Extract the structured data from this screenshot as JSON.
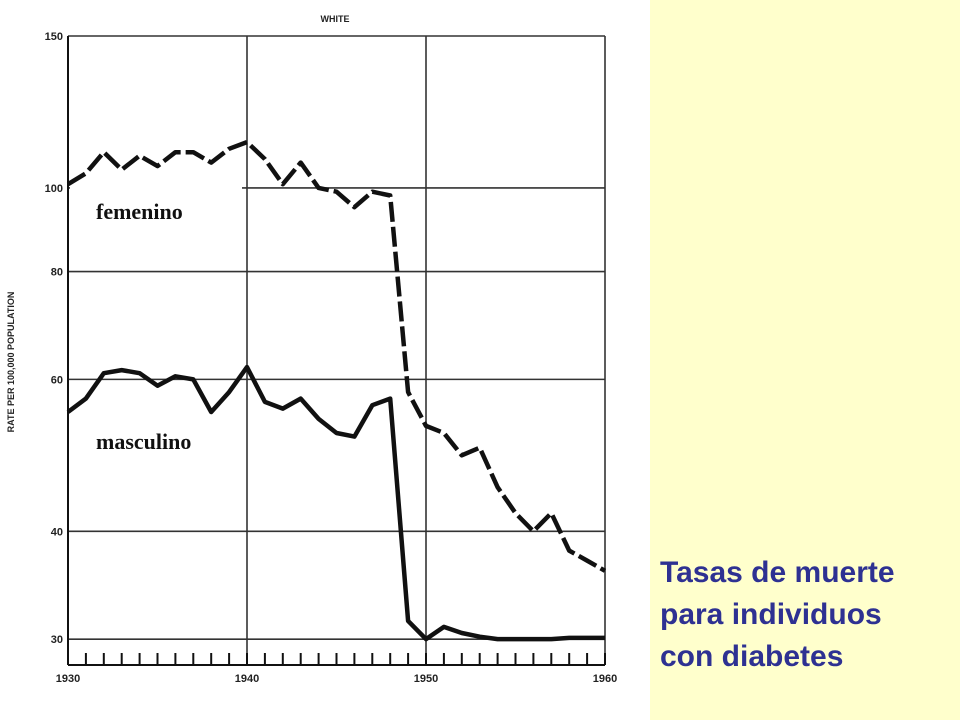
{
  "caption": {
    "lines": [
      "Tasas de muerte",
      "para individuos",
      "con diabetes"
    ]
  },
  "colors": {
    "caption_text": "#2e3192",
    "side_panel": "#ffffcc",
    "chart_ink": "#111111",
    "grid": "#333333"
  },
  "chart_data": {
    "type": "line",
    "title": "WHITE",
    "ylabel": "RATE PER 100,000 POPULATION",
    "xlabel": "",
    "y_scale": "log",
    "ylim": [
      28,
      150
    ],
    "xlim": [
      1930,
      1960
    ],
    "x_ticks": [
      1930,
      1940,
      1950,
      1960
    ],
    "y_ticks": [
      30,
      40,
      60,
      80,
      100,
      150
    ],
    "grid": true,
    "series": [
      {
        "name": "femenino",
        "style": "dashed",
        "x": [
          1930,
          1931,
          1932,
          1933,
          1934,
          1935,
          1936,
          1937,
          1938,
          1939,
          1940,
          1941,
          1942,
          1943,
          1944,
          1945,
          1946,
          1947,
          1948,
          1949,
          1950,
          1951,
          1952,
          1953,
          1954,
          1955,
          1956,
          1957,
          1958,
          1959,
          1960
        ],
        "values": [
          101,
          104,
          110,
          105,
          109,
          106,
          110,
          110,
          107,
          111,
          113,
          108,
          101,
          107,
          100,
          99,
          95,
          99,
          98,
          58,
          53,
          52,
          49,
          50,
          45,
          42,
          40,
          42,
          38,
          37,
          36
        ]
      },
      {
        "name": "masculino",
        "style": "solid",
        "x": [
          1930,
          1931,
          1932,
          1933,
          1934,
          1935,
          1936,
          1937,
          1938,
          1939,
          1940,
          1941,
          1942,
          1943,
          1944,
          1945,
          1946,
          1947,
          1948,
          1949,
          1950,
          1951,
          1952,
          1953,
          1954,
          1955,
          1956,
          1957,
          1958,
          1959,
          1960
        ],
        "values": [
          55,
          57,
          61,
          61.5,
          61,
          59,
          60.5,
          60,
          55,
          58,
          62,
          56.5,
          55.5,
          57,
          54,
          52,
          51.5,
          56,
          57,
          31.5,
          30,
          31,
          30.5,
          30.2,
          30,
          30,
          30,
          30,
          30.1,
          30.1,
          30.1
        ]
      }
    ]
  }
}
